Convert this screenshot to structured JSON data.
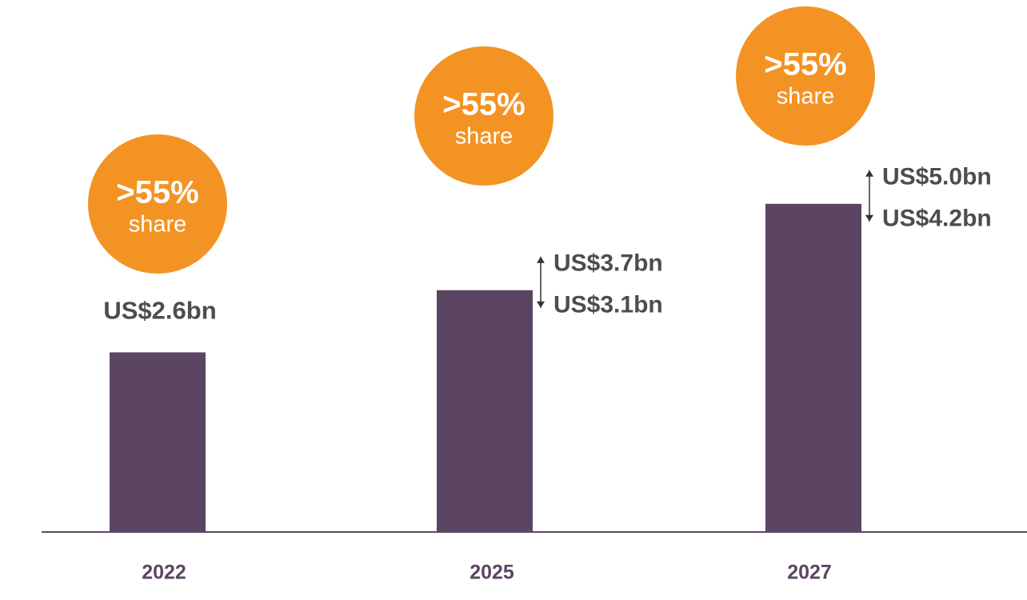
{
  "chart_data": {
    "type": "bar",
    "categories": [
      "2022",
      "2025",
      "2027"
    ],
    "values": [
      2.6,
      3.5,
      4.75
    ],
    "value_labels": [
      "US$2.6bn",
      null,
      null
    ],
    "range_high": [
      null,
      3.7,
      5.0
    ],
    "range_high_labels": [
      null,
      "US$3.7bn",
      "US$5.0bn"
    ],
    "range_low": [
      null,
      3.1,
      4.2
    ],
    "range_low_labels": [
      null,
      "US$3.1bn",
      "US$4.2bn"
    ],
    "badges": [
      {
        "value": ">55%",
        "text": "share"
      },
      {
        "value": ">55%",
        "text": "share"
      },
      {
        "value": ">55%",
        "text": "share"
      }
    ],
    "color": "#5c4562",
    "badge_color": "#f39324",
    "ylim": [
      0,
      7.7
    ]
  }
}
